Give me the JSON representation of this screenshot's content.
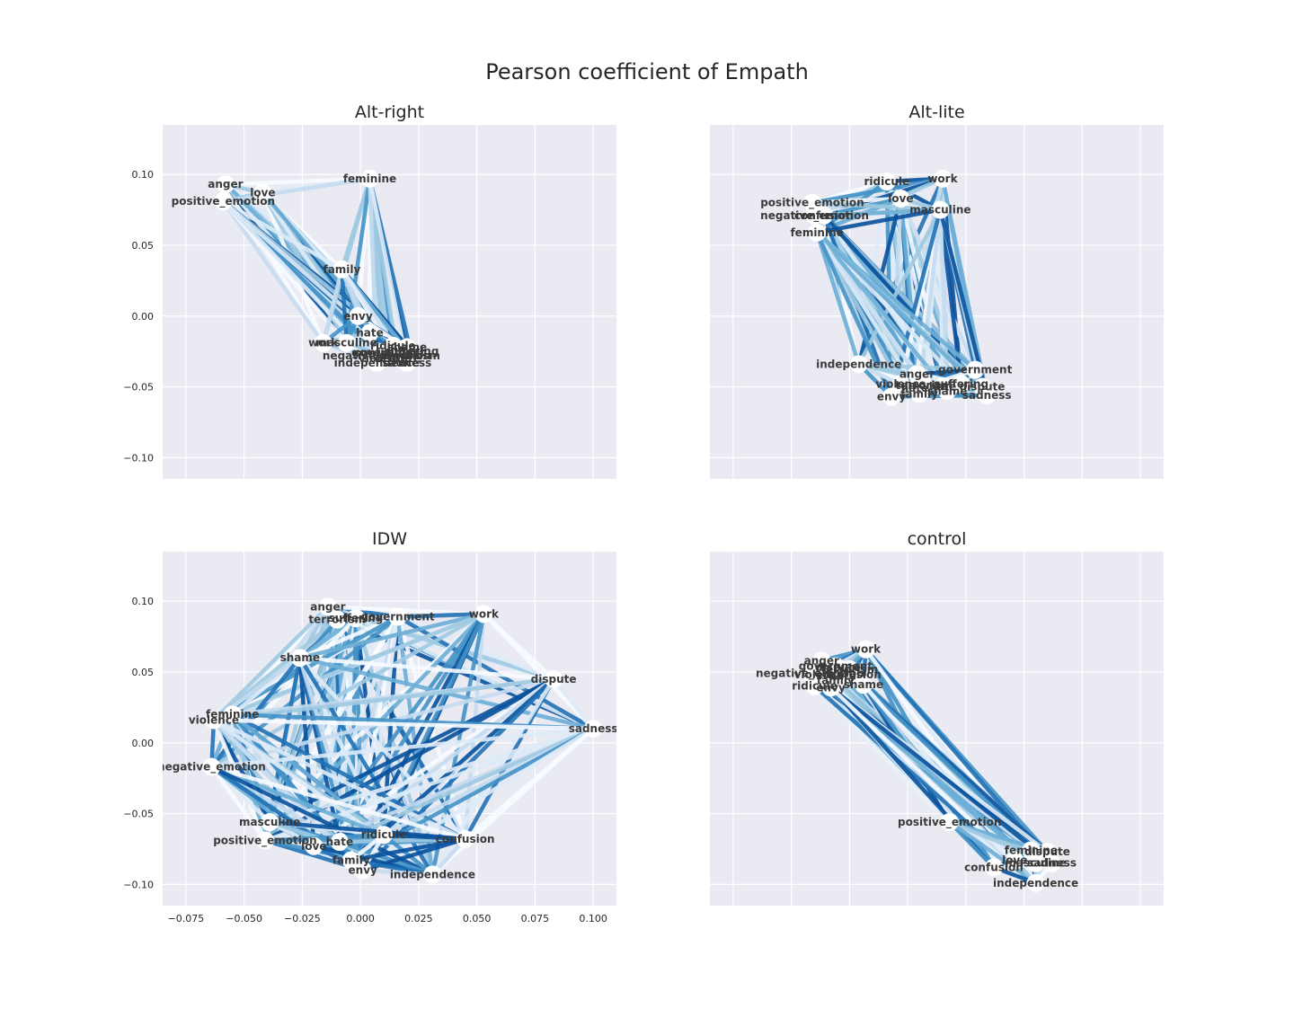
{
  "chart_data": {
    "type": "network",
    "title": "Pearson coefficient of Empath",
    "xlim": [
      -0.085,
      0.11
    ],
    "ylim": [
      -0.115,
      0.135
    ],
    "xticks": [
      -0.075,
      -0.05,
      -0.025,
      0.0,
      0.025,
      0.05,
      0.075,
      0.1
    ],
    "xtick_labels": [
      "−0.075",
      "−0.050",
      "−0.025",
      "0.000",
      "0.025",
      "0.050",
      "0.075",
      "0.100"
    ],
    "yticks": [
      0.1,
      0.05,
      0.0,
      -0.05,
      -0.1
    ],
    "ytick_labels": [
      "0.10",
      "0.05",
      "0.00",
      "−0.05",
      "−0.10"
    ],
    "edge_colormap": [
      "#f7fbff",
      "#deebf7",
      "#c6dbef",
      "#9ecae1",
      "#6baed6",
      "#4292c6",
      "#2171b5",
      "#08519c"
    ],
    "grid": true,
    "panels": [
      {
        "title": "Alt-right",
        "nodes": [
          {
            "label": "anger",
            "x": -0.058,
            "y": 0.093
          },
          {
            "label": "love",
            "x": -0.042,
            "y": 0.087
          },
          {
            "label": "positive_emotion",
            "x": -0.059,
            "y": 0.081
          },
          {
            "label": "feminine",
            "x": 0.004,
            "y": 0.097
          },
          {
            "label": "family",
            "x": -0.008,
            "y": 0.033
          },
          {
            "label": "envy",
            "x": -0.001,
            "y": 0.0
          },
          {
            "label": "hate",
            "x": 0.004,
            "y": -0.012
          },
          {
            "label": "work",
            "x": -0.016,
            "y": -0.019
          },
          {
            "label": "masculine",
            "x": -0.006,
            "y": -0.019
          },
          {
            "label": "ridicule",
            "x": 0.014,
            "y": -0.021
          },
          {
            "label": "shame",
            "x": 0.02,
            "y": -0.022
          },
          {
            "label": "suffering",
            "x": 0.022,
            "y": -0.025
          },
          {
            "label": "confusion",
            "x": 0.01,
            "y": -0.026
          },
          {
            "label": "government",
            "x": 0.012,
            "y": -0.026
          },
          {
            "label": "negative_emotion",
            "x": 0.007,
            "y": -0.028
          },
          {
            "label": "terrorism",
            "x": 0.022,
            "y": -0.028
          },
          {
            "label": "dispute",
            "x": 0.016,
            "y": -0.03
          },
          {
            "label": "violence",
            "x": 0.01,
            "y": -0.03
          },
          {
            "label": "independence",
            "x": 0.007,
            "y": -0.033
          },
          {
            "label": "sadness",
            "x": 0.02,
            "y": -0.033
          }
        ]
      },
      {
        "title": "Alt-lite",
        "nodes": [
          {
            "label": "ridicule",
            "x": -0.009,
            "y": 0.095
          },
          {
            "label": "work",
            "x": 0.015,
            "y": 0.097
          },
          {
            "label": "love",
            "x": -0.003,
            "y": 0.083
          },
          {
            "label": "positive_emotion",
            "x": -0.041,
            "y": 0.08
          },
          {
            "label": "negative_emotion",
            "x": -0.04,
            "y": 0.071
          },
          {
            "label": "confusion",
            "x": -0.036,
            "y": 0.071
          },
          {
            "label": "masculine",
            "x": 0.014,
            "y": 0.075
          },
          {
            "label": "feminine",
            "x": -0.039,
            "y": 0.059
          },
          {
            "label": "independence",
            "x": -0.021,
            "y": -0.034
          },
          {
            "label": "government",
            "x": 0.029,
            "y": -0.038
          },
          {
            "label": "anger",
            "x": 0.004,
            "y": -0.041
          },
          {
            "label": "violence",
            "x": -0.003,
            "y": -0.048
          },
          {
            "label": "suffering",
            "x": 0.023,
            "y": -0.048
          },
          {
            "label": "dispute",
            "x": 0.032,
            "y": -0.05
          },
          {
            "label": "terrorism",
            "x": 0.007,
            "y": -0.049
          },
          {
            "label": "hate",
            "x": 0.015,
            "y": -0.05
          },
          {
            "label": "hate",
            "x": 0.003,
            "y": -0.051
          },
          {
            "label": "shame",
            "x": 0.017,
            "y": -0.053
          },
          {
            "label": "family",
            "x": 0.005,
            "y": -0.055
          },
          {
            "label": "sadness",
            "x": 0.034,
            "y": -0.056
          },
          {
            "label": "envy",
            "x": -0.007,
            "y": -0.057
          }
        ]
      },
      {
        "title": "IDW",
        "nodes": [
          {
            "label": "anger",
            "x": -0.014,
            "y": 0.096
          },
          {
            "label": "terrorism",
            "x": -0.01,
            "y": 0.087
          },
          {
            "label": "suffering",
            "x": -0.002,
            "y": 0.088
          },
          {
            "label": "government",
            "x": 0.016,
            "y": 0.089
          },
          {
            "label": "work",
            "x": 0.053,
            "y": 0.091
          },
          {
            "label": "shame",
            "x": -0.026,
            "y": 0.06
          },
          {
            "label": "dispute",
            "x": 0.083,
            "y": 0.045
          },
          {
            "label": "feminine",
            "x": -0.055,
            "y": 0.02
          },
          {
            "label": "violence",
            "x": -0.063,
            "y": 0.016
          },
          {
            "label": "sadness",
            "x": 0.1,
            "y": 0.01
          },
          {
            "label": "negative_emotion",
            "x": -0.064,
            "y": -0.017
          },
          {
            "label": "masculine",
            "x": -0.039,
            "y": -0.056
          },
          {
            "label": "positive_emotion",
            "x": -0.041,
            "y": -0.069
          },
          {
            "label": "love",
            "x": -0.02,
            "y": -0.073
          },
          {
            "label": "hate",
            "x": -0.009,
            "y": -0.07
          },
          {
            "label": "ridicule",
            "x": 0.01,
            "y": -0.065
          },
          {
            "label": "confusion",
            "x": 0.045,
            "y": -0.068
          },
          {
            "label": "family",
            "x": -0.004,
            "y": -0.083
          },
          {
            "label": "envy",
            "x": 0.001,
            "y": -0.09
          },
          {
            "label": "independence",
            "x": 0.031,
            "y": -0.093
          }
        ]
      },
      {
        "title": "control",
        "nodes": [
          {
            "label": "work",
            "x": -0.018,
            "y": 0.066
          },
          {
            "label": "anger",
            "x": -0.037,
            "y": 0.058
          },
          {
            "label": "government",
            "x": -0.031,
            "y": 0.054
          },
          {
            "label": "dispute",
            "x": -0.03,
            "y": 0.053
          },
          {
            "label": "terrorism",
            "x": -0.025,
            "y": 0.052
          },
          {
            "label": "negative_emotion",
            "x": -0.042,
            "y": 0.049
          },
          {
            "label": "violence",
            "x": -0.038,
            "y": 0.048
          },
          {
            "label": "hate",
            "x": -0.028,
            "y": 0.047
          },
          {
            "label": "confusion",
            "x": -0.024,
            "y": 0.048
          },
          {
            "label": "family",
            "x": -0.031,
            "y": 0.044
          },
          {
            "label": "shame",
            "x": -0.019,
            "y": 0.041
          },
          {
            "label": "ridicule",
            "x": -0.04,
            "y": 0.04
          },
          {
            "label": "envy",
            "x": -0.033,
            "y": 0.039
          },
          {
            "label": "positive_emotion",
            "x": 0.018,
            "y": -0.056
          },
          {
            "label": "feminine",
            "x": 0.053,
            "y": -0.076
          },
          {
            "label": "dispute",
            "x": 0.06,
            "y": -0.077
          },
          {
            "label": "love",
            "x": 0.046,
            "y": -0.083
          },
          {
            "label": "masculine",
            "x": 0.055,
            "y": -0.085
          },
          {
            "label": "sadness",
            "x": 0.062,
            "y": -0.085
          },
          {
            "label": "confusion",
            "x": 0.037,
            "y": -0.088
          },
          {
            "label": "independence",
            "x": 0.055,
            "y": -0.099
          }
        ]
      }
    ]
  }
}
